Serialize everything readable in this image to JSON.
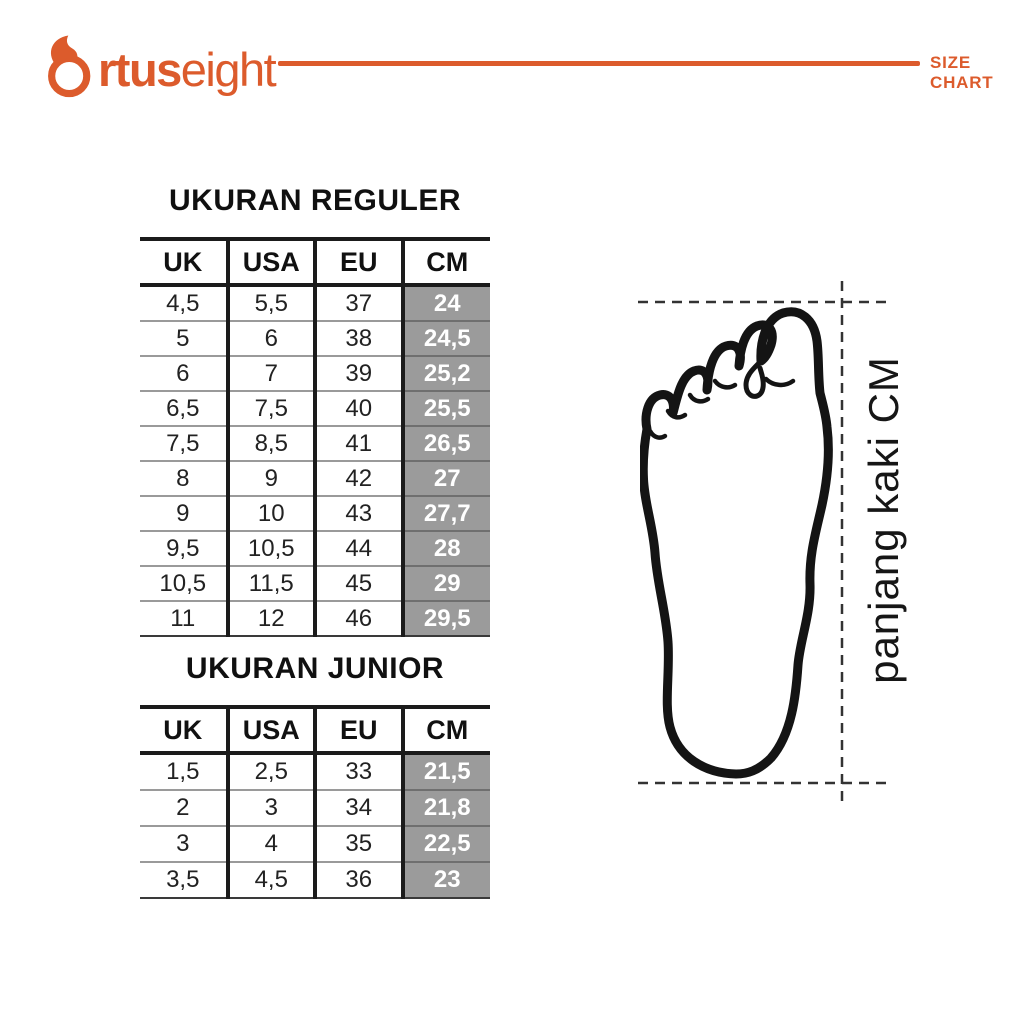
{
  "header": {
    "logo": {
      "full": "Ortuseight",
      "bold": "rtus",
      "light": "eight"
    },
    "tagline": "SIZE CHART",
    "accent_color": "#DC5B2C"
  },
  "tables": [
    {
      "title": "UKURAN REGULER",
      "headers": [
        "UK",
        "USA",
        "EU",
        "CM"
      ],
      "highlight_col": 3,
      "highlight_color": "#9B9B9B",
      "rows": [
        [
          "4,5",
          "5,5",
          "37",
          "24"
        ],
        [
          "5",
          "6",
          "38",
          "24,5"
        ],
        [
          "6",
          "7",
          "39",
          "25,2"
        ],
        [
          "6,5",
          "7,5",
          "40",
          "25,5"
        ],
        [
          "7,5",
          "8,5",
          "41",
          "26,5"
        ],
        [
          "8",
          "9",
          "42",
          "27"
        ],
        [
          "9",
          "10",
          "43",
          "27,7"
        ],
        [
          "9,5",
          "10,5",
          "44",
          "28"
        ],
        [
          "10,5",
          "11,5",
          "45",
          "29"
        ],
        [
          "11",
          "12",
          "46",
          "29,5"
        ]
      ]
    },
    {
      "title": "UKURAN JUNIOR",
      "headers": [
        "UK",
        "USA",
        "EU",
        "CM"
      ],
      "highlight_col": 3,
      "highlight_color": "#9B9B9B",
      "rows": [
        [
          "1,5",
          "2,5",
          "33",
          "21,5"
        ],
        [
          "2",
          "3",
          "34",
          "21,8"
        ],
        [
          "3",
          "4",
          "35",
          "22,5"
        ],
        [
          "3,5",
          "4,5",
          "36",
          "23"
        ]
      ]
    }
  ],
  "figure": {
    "label": "panjang kaki CM",
    "icon": "foot-outline-icon"
  }
}
